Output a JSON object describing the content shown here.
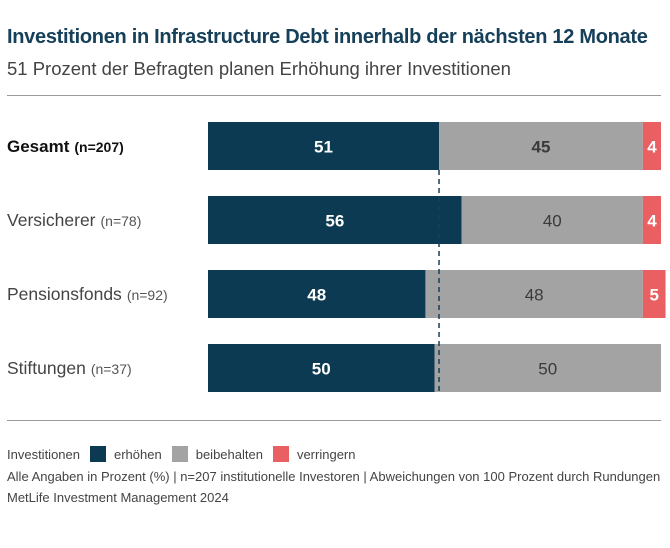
{
  "header": {
    "title": "Investitionen in Infrastructure Debt innerhalb der nächsten 12 Monate",
    "subtitle": "51 Prozent der Befragten planen Erhöhung ihrer Investitionen"
  },
  "colors": {
    "erhoehen": "#0c3a52",
    "beibehalten": "#a3a3a3",
    "verringern": "#ea5f62",
    "title": "#16405a",
    "reference_line": "#16405a"
  },
  "chart_data": {
    "type": "bar",
    "orientation": "horizontal",
    "stacked": true,
    "title": "Investitionen in Infrastructure Debt innerhalb der nächsten 12 Monate",
    "subtitle": "51 Prozent der Befragten planen Erhöhung ihrer Investitionen",
    "categories": [
      {
        "label": "Gesamt",
        "n": "(n=207)",
        "bold": true
      },
      {
        "label": "Versicherer",
        "n": "(n=78)",
        "bold": false
      },
      {
        "label": "Pensionsfonds",
        "n": "(n=92)",
        "bold": false
      },
      {
        "label": "Stiftungen",
        "n": "(n=37)",
        "bold": false
      }
    ],
    "series": [
      {
        "name": "erhöhen",
        "values": [
          51,
          56,
          48,
          50
        ]
      },
      {
        "name": "beibehalten",
        "values": [
          45,
          40,
          48,
          50
        ]
      },
      {
        "name": "verringern",
        "values": [
          4,
          4,
          5,
          0
        ]
      }
    ],
    "reference_line": 51,
    "xlim": [
      0,
      100
    ],
    "grid": false,
    "legend_position": "bottom"
  },
  "legend": {
    "title": "Investitionen",
    "items": [
      {
        "label": "erhöhen",
        "color": "#0c3a52"
      },
      {
        "label": "beibehalten",
        "color": "#a3a3a3"
      },
      {
        "label": "verringern",
        "color": "#ea5f62"
      }
    ]
  },
  "footer": {
    "note": "Alle Angaben in Prozent (%) | n=207 institutionelle Investoren | Abweichungen von 100 Prozent durch Rundungen",
    "source": "MetLife Investment Management 2024"
  }
}
